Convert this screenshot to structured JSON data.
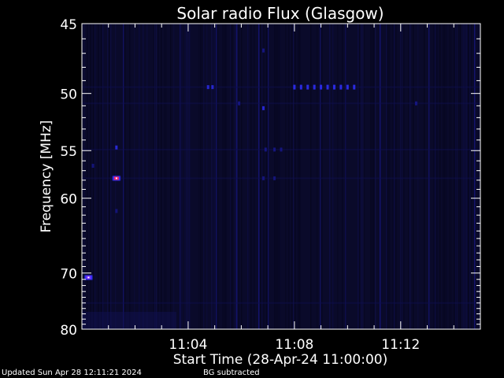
{
  "chart_data": {
    "type": "heatmap",
    "title": "Solar radio Flux (Glasgow)",
    "xlabel": "Start Time (28-Apr-24 11:00:00)",
    "ylabel": "Frequency [MHz]",
    "x_unit": "time (HH:MM)",
    "xlim": [
      "11:00:00",
      "11:15:00"
    ],
    "ylim": [
      80,
      45
    ],
    "y_scale": "reciprocal",
    "x_ticks": [
      "11:04",
      "11:08",
      "11:12"
    ],
    "y_ticks": [
      45,
      50,
      55,
      60,
      70,
      80
    ],
    "background_color": "#0a0a2a",
    "colormap": [
      "#050518",
      "#0a0a2a",
      "#101050",
      "#1a1aa0",
      "#3030ff",
      "#8030ff",
      "#ff2060",
      "#ffffff"
    ],
    "features": [
      {
        "time": "11:01:18",
        "freq_mhz": 57.8,
        "intensity": 1.0
      },
      {
        "time": "11:01:18",
        "freq_mhz": 54.7,
        "intensity": 0.6
      },
      {
        "time": "11:01:18",
        "freq_mhz": 61.5,
        "intensity": 0.3
      },
      {
        "time": "11:00:15",
        "freq_mhz": 70.7,
        "intensity": 0.85
      },
      {
        "time": "11:00:25",
        "freq_mhz": 56.5,
        "intensity": 0.35
      },
      {
        "time": "11:06:50",
        "freq_mhz": 46.8,
        "intensity": 0.45
      },
      {
        "time": "11:06:50",
        "freq_mhz": 51.2,
        "intensity": 0.55
      },
      {
        "time": "11:06:55",
        "freq_mhz": 54.9,
        "intensity": 0.4
      },
      {
        "time": "11:07:15",
        "freq_mhz": 54.9,
        "intensity": 0.4
      },
      {
        "time": "11:07:30",
        "freq_mhz": 54.9,
        "intensity": 0.35
      },
      {
        "time": "11:06:50",
        "freq_mhz": 57.8,
        "intensity": 0.3
      },
      {
        "time": "11:07:15",
        "freq_mhz": 57.8,
        "intensity": 0.3
      },
      {
        "time": "11:05:55",
        "freq_mhz": 50.8,
        "intensity": 0.4
      },
      {
        "time": "11:04:45",
        "freq_mhz": 49.5,
        "intensity": 0.5
      },
      {
        "time": "11:04:55",
        "freq_mhz": 49.5,
        "intensity": 0.5
      },
      {
        "time": "11:12:35",
        "freq_mhz": 50.8,
        "intensity": 0.4
      }
    ],
    "drifting_lane": {
      "freq_mhz": 49.5,
      "times": [
        "11:08:00",
        "11:08:15",
        "11:08:30",
        "11:08:45",
        "11:09:00",
        "11:09:15",
        "11:09:30",
        "11:09:45",
        "11:10:00",
        "11:10:15"
      ],
      "intensity": 0.45
    },
    "grid": false,
    "legend": "none"
  },
  "footer": {
    "updated": "Updated Sun Apr 28 12:11:21 2024",
    "bg_note": "BG subtracted"
  }
}
